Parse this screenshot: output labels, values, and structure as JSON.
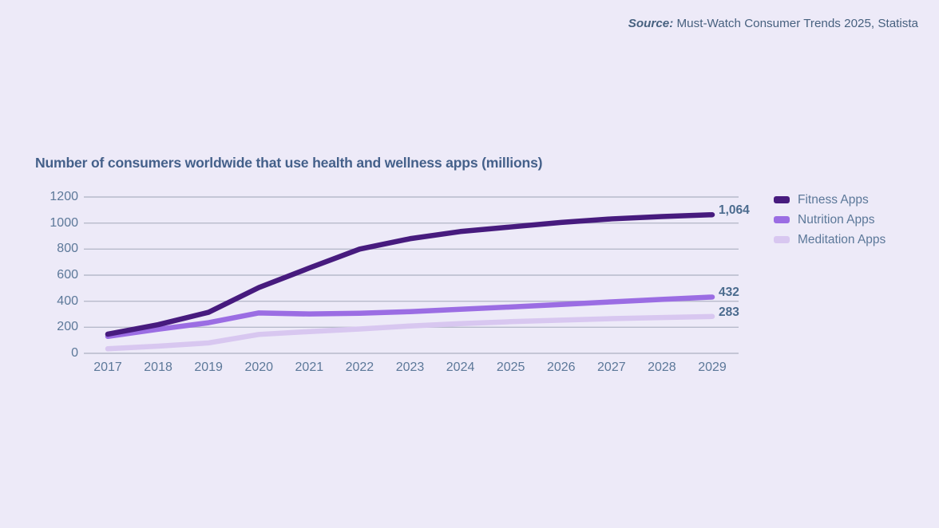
{
  "source": {
    "label": "Source:",
    "text": "Must-Watch Consumer Trends 2025, Statista"
  },
  "chart_data": {
    "type": "line",
    "title": "Number of consumers worldwide that use health and wellness apps (millions)",
    "x": [
      2017,
      2018,
      2019,
      2020,
      2021,
      2022,
      2023,
      2024,
      2025,
      2026,
      2027,
      2028,
      2029
    ],
    "series": [
      {
        "name": "Fitness Apps",
        "color": "#471B7E",
        "end_label": "1,064",
        "values": [
          147,
          220,
          315,
          505,
          655,
          800,
          880,
          935,
          970,
          1005,
          1032,
          1050,
          1064
        ]
      },
      {
        "name": "Nutrition Apps",
        "color": "#9B6DE3",
        "end_label": "432",
        "values": [
          130,
          185,
          235,
          310,
          302,
          308,
          320,
          338,
          356,
          375,
          395,
          414,
          432
        ]
      },
      {
        "name": "Meditation Apps",
        "color": "#D8C7F0",
        "end_label": "283",
        "values": [
          35,
          55,
          80,
          145,
          167,
          187,
          210,
          228,
          243,
          255,
          266,
          275,
          283
        ]
      }
    ],
    "ylim": [
      0,
      1200
    ],
    "yticks": [
      0,
      200,
      400,
      600,
      800,
      1000,
      1200
    ],
    "grid": true,
    "legend_position": "right",
    "ylabel": "",
    "xlabel": ""
  },
  "colors": {
    "background": "#EDEAF8",
    "gridline": "#B7BACB",
    "title_text": "#44608A",
    "axis_text": "#5C7899",
    "value_label_text": "#4B6B8E",
    "source_text": "#47617F",
    "legend_text": "#5C7899"
  }
}
